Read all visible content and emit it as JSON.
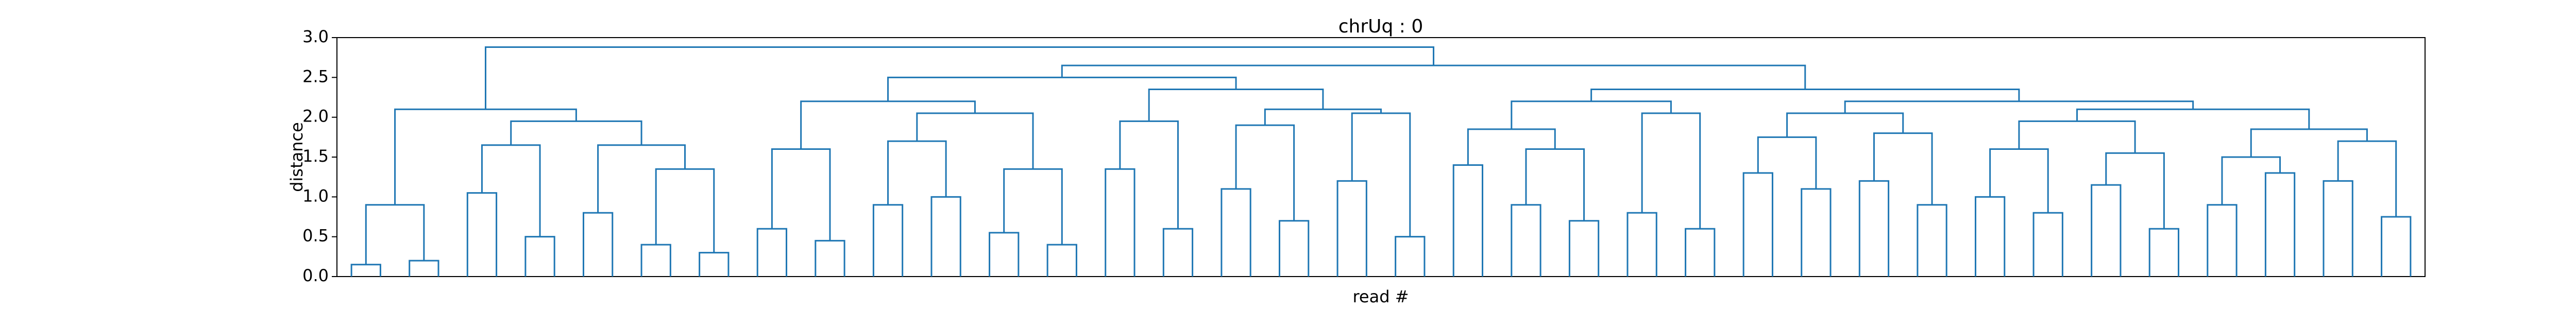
{
  "chart_data": {
    "type": "dendrogram",
    "title": "chrUq : 0",
    "xlabel": "read #",
    "ylabel": "distance",
    "color": "#1f77b4",
    "ylim": [
      0,
      3.0
    ],
    "yticks": [
      {
        "value": 0,
        "label": "0.0"
      },
      {
        "value": 0.5,
        "label": "0.5"
      },
      {
        "value": 1,
        "label": "1.0"
      },
      {
        "value": 1.5,
        "label": "1.5"
      },
      {
        "value": 2,
        "label": "2.0"
      },
      {
        "value": 2.5,
        "label": "2.5"
      },
      {
        "value": 3,
        "label": "3.0"
      }
    ],
    "tree": {
      "height": 2.88,
      "children": [
        {
          "height": 2.1,
          "children": [
            {
              "height": 0.9,
              "children": [
                {
                  "height": 0.15,
                  "children": [
                    {
                      "height": 0
                    },
                    {
                      "height": 0
                    }
                  ]
                },
                {
                  "height": 0.2,
                  "children": [
                    {
                      "height": 0
                    },
                    {
                      "height": 0
                    }
                  ]
                }
              ]
            },
            {
              "height": 1.95,
              "children": [
                {
                  "height": 1.65,
                  "children": [
                    {
                      "height": 1.05,
                      "children": [
                        {
                          "height": 0
                        },
                        {
                          "height": 0
                        }
                      ]
                    },
                    {
                      "height": 0.5,
                      "children": [
                        {
                          "height": 0
                        },
                        {
                          "height": 0
                        }
                      ]
                    }
                  ]
                },
                {
                  "height": 1.65,
                  "children": [
                    {
                      "height": 0.8,
                      "children": [
                        {
                          "height": 0
                        },
                        {
                          "height": 0
                        }
                      ]
                    },
                    {
                      "height": 1.35,
                      "children": [
                        {
                          "height": 0.4,
                          "children": [
                            {
                              "height": 0
                            },
                            {
                              "height": 0
                            }
                          ]
                        },
                        {
                          "height": 0.3,
                          "children": [
                            {
                              "height": 0
                            },
                            {
                              "height": 0
                            }
                          ]
                        }
                      ]
                    }
                  ]
                }
              ]
            }
          ]
        },
        {
          "height": 2.65,
          "children": [
            {
              "height": 2.5,
              "children": [
                {
                  "height": 2.2,
                  "children": [
                    {
                      "height": 1.6,
                      "children": [
                        {
                          "height": 0.6,
                          "children": [
                            {
                              "height": 0
                            },
                            {
                              "height": 0
                            }
                          ]
                        },
                        {
                          "height": 0.45,
                          "children": [
                            {
                              "height": 0
                            },
                            {
                              "height": 0
                            }
                          ]
                        }
                      ]
                    },
                    {
                      "height": 2.05,
                      "children": [
                        {
                          "height": 1.7,
                          "children": [
                            {
                              "height": 0.9,
                              "children": [
                                {
                                  "height": 0
                                },
                                {
                                  "height": 0
                                }
                              ]
                            },
                            {
                              "height": 1.0,
                              "children": [
                                {
                                  "height": 0
                                },
                                {
                                  "height": 0
                                }
                              ]
                            }
                          ]
                        },
                        {
                          "height": 1.35,
                          "children": [
                            {
                              "height": 0.55,
                              "children": [
                                {
                                  "height": 0
                                },
                                {
                                  "height": 0
                                }
                              ]
                            },
                            {
                              "height": 0.4,
                              "children": [
                                {
                                  "height": 0
                                },
                                {
                                  "height": 0
                                }
                              ]
                            }
                          ]
                        }
                      ]
                    }
                  ]
                },
                {
                  "height": 2.35,
                  "children": [
                    {
                      "height": 1.95,
                      "children": [
                        {
                          "height": 1.35,
                          "children": [
                            {
                              "height": 0
                            },
                            {
                              "height": 0
                            }
                          ]
                        },
                        {
                          "height": 0.6,
                          "children": [
                            {
                              "height": 0
                            },
                            {
                              "height": 0
                            }
                          ]
                        }
                      ]
                    },
                    {
                      "height": 2.1,
                      "children": [
                        {
                          "height": 1.9,
                          "children": [
                            {
                              "height": 1.1,
                              "children": [
                                {
                                  "height": 0
                                },
                                {
                                  "height": 0
                                }
                              ]
                            },
                            {
                              "height": 0.7,
                              "children": [
                                {
                                  "height": 0
                                },
                                {
                                  "height": 0
                                }
                              ]
                            }
                          ]
                        },
                        {
                          "height": 2.05,
                          "children": [
                            {
                              "height": 1.2,
                              "children": [
                                {
                                  "height": 0
                                },
                                {
                                  "height": 0
                                }
                              ]
                            },
                            {
                              "height": 0.5,
                              "children": [
                                {
                                  "height": 0
                                },
                                {
                                  "height": 0
                                }
                              ]
                            }
                          ]
                        }
                      ]
                    }
                  ]
                }
              ]
            },
            {
              "height": 2.35,
              "children": [
                {
                  "height": 2.2,
                  "children": [
                    {
                      "height": 1.85,
                      "children": [
                        {
                          "height": 1.4,
                          "children": [
                            {
                              "height": 0
                            },
                            {
                              "height": 0
                            }
                          ]
                        },
                        {
                          "height": 1.6,
                          "children": [
                            {
                              "height": 0.9,
                              "children": [
                                {
                                  "height": 0
                                },
                                {
                                  "height": 0
                                }
                              ]
                            },
                            {
                              "height": 0.7,
                              "children": [
                                {
                                  "height": 0
                                },
                                {
                                  "height": 0
                                }
                              ]
                            }
                          ]
                        }
                      ]
                    },
                    {
                      "height": 2.05,
                      "children": [
                        {
                          "height": 0.8,
                          "children": [
                            {
                              "height": 0
                            },
                            {
                              "height": 0
                            }
                          ]
                        },
                        {
                          "height": 0.6,
                          "children": [
                            {
                              "height": 0
                            },
                            {
                              "height": 0
                            }
                          ]
                        }
                      ]
                    }
                  ]
                },
                {
                  "height": 2.2,
                  "children": [
                    {
                      "height": 2.05,
                      "children": [
                        {
                          "height": 1.75,
                          "children": [
                            {
                              "height": 1.3,
                              "children": [
                                {
                                  "height": 0
                                },
                                {
                                  "height": 0
                                }
                              ]
                            },
                            {
                              "height": 1.1,
                              "children": [
                                {
                                  "height": 0
                                },
                                {
                                  "height": 0
                                }
                              ]
                            }
                          ]
                        },
                        {
                          "height": 1.8,
                          "children": [
                            {
                              "height": 1.2,
                              "children": [
                                {
                                  "height": 0
                                },
                                {
                                  "height": 0
                                }
                              ]
                            },
                            {
                              "height": 0.9,
                              "children": [
                                {
                                  "height": 0
                                },
                                {
                                  "height": 0
                                }
                              ]
                            }
                          ]
                        }
                      ]
                    },
                    {
                      "height": 2.1,
                      "children": [
                        {
                          "height": 1.95,
                          "children": [
                            {
                              "height": 1.6,
                              "children": [
                                {
                                  "height": 1.0,
                                  "children": [
                                    {
                                      "height": 0
                                    },
                                    {
                                      "height": 0
                                    }
                                  ]
                                },
                                {
                                  "height": 0.8,
                                  "children": [
                                    {
                                      "height": 0
                                    },
                                    {
                                      "height": 0
                                    }
                                  ]
                                }
                              ]
                            },
                            {
                              "height": 1.55,
                              "children": [
                                {
                                  "height": 1.15,
                                  "children": [
                                    {
                                      "height": 0
                                    },
                                    {
                                      "height": 0
                                    }
                                  ]
                                },
                                {
                                  "height": 0.6,
                                  "children": [
                                    {
                                      "height": 0
                                    },
                                    {
                                      "height": 0
                                    }
                                  ]
                                }
                              ]
                            }
                          ]
                        },
                        {
                          "height": 1.85,
                          "children": [
                            {
                              "height": 1.5,
                              "children": [
                                {
                                  "height": 0.9,
                                  "children": [
                                    {
                                      "height": 0
                                    },
                                    {
                                      "height": 0
                                    }
                                  ]
                                },
                                {
                                  "height": 1.3,
                                  "children": [
                                    {
                                      "height": 0
                                    },
                                    {
                                      "height": 0
                                    }
                                  ]
                                }
                              ]
                            },
                            {
                              "height": 1.7,
                              "children": [
                                {
                                  "height": 1.2,
                                  "children": [
                                    {
                                      "height": 0
                                    },
                                    {
                                      "height": 0
                                    }
                                  ]
                                },
                                {
                                  "height": 0.75,
                                  "children": [
                                    {
                                      "height": 0
                                    },
                                    {
                                      "height": 0
                                    }
                                  ]
                                }
                              ]
                            }
                          ]
                        }
                      ]
                    }
                  ]
                }
              ]
            }
          ]
        }
      ]
    }
  }
}
